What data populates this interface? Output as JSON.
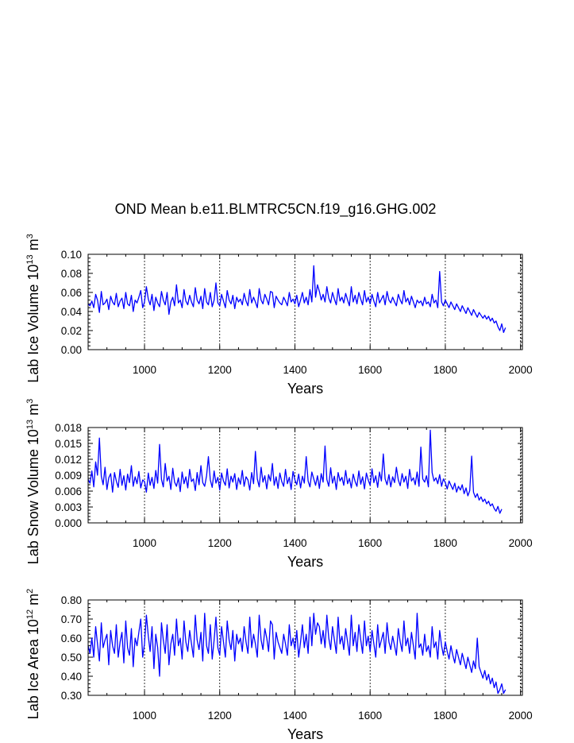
{
  "title": "OND Mean b.e11.BLMTRC5CN.f19_g16.GHG.002",
  "colors": {
    "series": "#0000ff",
    "axis": "#000000",
    "refline": "#000000"
  },
  "chart_data": [
    {
      "type": "line",
      "id": "ice_volume",
      "xlabel": "Years",
      "ylabel_main": "Lab Ice Volume 10",
      "ylabel_exp": "13",
      "ylabel_unit": "m",
      "ylabel_unit_exp": "3",
      "xlim": [
        850,
        2005
      ],
      "ylim": [
        0.0,
        0.1
      ],
      "xticks": [
        1000,
        1200,
        1400,
        1600,
        1800,
        2000
      ],
      "xtick_labels": [
        "1000",
        "1200",
        "1400",
        "1600",
        "1800",
        "2000"
      ],
      "yticks": [
        0.0,
        0.02,
        0.04,
        0.06,
        0.08,
        0.1
      ],
      "ytick_labels": [
        "0.00",
        "0.02",
        "0.04",
        "0.06",
        "0.08",
        "0.10"
      ],
      "ref_lines_x": [
        1000,
        1200,
        1400,
        1600,
        1800,
        2000
      ],
      "series": {
        "name": "Lab Ice Volume",
        "x_start": 850,
        "x_end": 2005,
        "x_step": 5,
        "values": [
          0.048,
          0.046,
          0.051,
          0.044,
          0.058,
          0.052,
          0.039,
          0.061,
          0.047,
          0.049,
          0.053,
          0.042,
          0.056,
          0.05,
          0.047,
          0.059,
          0.045,
          0.051,
          0.054,
          0.043,
          0.06,
          0.048,
          0.046,
          0.057,
          0.04,
          0.052,
          0.049,
          0.055,
          0.062,
          0.044,
          0.05,
          0.066,
          0.053,
          0.047,
          0.058,
          0.041,
          0.055,
          0.049,
          0.045,
          0.061,
          0.052,
          0.047,
          0.06,
          0.037,
          0.05,
          0.055,
          0.046,
          0.068,
          0.049,
          0.052,
          0.044,
          0.063,
          0.051,
          0.047,
          0.057,
          0.05,
          0.045,
          0.065,
          0.052,
          0.048,
          0.056,
          0.043,
          0.064,
          0.05,
          0.047,
          0.06,
          0.045,
          0.052,
          0.07,
          0.049,
          0.046,
          0.058,
          0.051,
          0.044,
          0.062,
          0.052,
          0.048,
          0.057,
          0.043,
          0.055,
          0.05,
          0.053,
          0.047,
          0.059,
          0.051,
          0.046,
          0.063,
          0.049,
          0.055,
          0.05,
          0.044,
          0.064,
          0.052,
          0.048,
          0.058,
          0.053,
          0.047,
          0.061,
          0.06,
          0.044,
          0.056,
          0.052,
          0.049,
          0.047,
          0.055,
          0.051,
          0.046,
          0.06,
          0.05,
          0.053,
          0.048,
          0.057,
          0.045,
          0.052,
          0.06,
          0.049,
          0.055,
          0.047,
          0.063,
          0.05,
          0.088,
          0.055,
          0.068,
          0.061,
          0.052,
          0.058,
          0.05,
          0.066,
          0.054,
          0.049,
          0.06,
          0.053,
          0.047,
          0.064,
          0.051,
          0.055,
          0.049,
          0.059,
          0.052,
          0.046,
          0.066,
          0.05,
          0.057,
          0.048,
          0.06,
          0.053,
          0.047,
          0.062,
          0.05,
          0.055,
          0.048,
          0.058,
          0.051,
          0.045,
          0.06,
          0.049,
          0.053,
          0.057,
          0.047,
          0.061,
          0.052,
          0.049,
          0.055,
          0.05,
          0.046,
          0.058,
          0.052,
          0.048,
          0.062,
          0.05,
          0.054,
          0.047,
          0.056,
          0.05,
          0.044,
          0.052,
          0.049,
          0.051,
          0.046,
          0.055,
          0.048,
          0.05,
          0.045,
          0.058,
          0.049,
          0.052,
          0.044,
          0.082,
          0.05,
          0.046,
          0.052,
          0.048,
          0.044,
          0.05,
          0.046,
          0.042,
          0.048,
          0.044,
          0.04,
          0.046,
          0.042,
          0.038,
          0.044,
          0.04,
          0.036,
          0.042,
          0.038,
          0.034,
          0.039,
          0.036,
          0.033,
          0.036,
          0.032,
          0.035,
          0.03,
          0.033,
          0.028,
          0.03,
          0.024,
          0.02,
          0.027,
          0.018,
          0.023
        ]
      }
    },
    {
      "type": "line",
      "id": "snow_volume",
      "xlabel": "Years",
      "ylabel_main": "Lab Snow Volume 10",
      "ylabel_exp": "13",
      "ylabel_unit": "m",
      "ylabel_unit_exp": "3",
      "xlim": [
        850,
        2005
      ],
      "ylim": [
        0.0,
        0.018
      ],
      "xticks": [
        1000,
        1200,
        1400,
        1600,
        1800,
        2000
      ],
      "xtick_labels": [
        "1000",
        "1200",
        "1400",
        "1600",
        "1800",
        "2000"
      ],
      "yticks": [
        0.0,
        0.003,
        0.006,
        0.009,
        0.012,
        0.015,
        0.018
      ],
      "ytick_labels": [
        "0.000",
        "0.003",
        "0.006",
        "0.009",
        "0.012",
        "0.015",
        "0.018"
      ],
      "ref_lines_x": [
        1000,
        1200,
        1400,
        1600,
        1800,
        2000
      ],
      "series": {
        "name": "Lab Snow Volume",
        "x_start": 850,
        "x_end": 2005,
        "x_step": 5,
        "values": [
          0.0082,
          0.0075,
          0.0098,
          0.0068,
          0.0115,
          0.009,
          0.016,
          0.0088,
          0.0072,
          0.0105,
          0.0063,
          0.0085,
          0.0093,
          0.0058,
          0.0095,
          0.0079,
          0.0067,
          0.0101,
          0.0071,
          0.0089,
          0.0062,
          0.0092,
          0.0076,
          0.0108,
          0.0069,
          0.0087,
          0.0074,
          0.0097,
          0.0066,
          0.0081,
          0.0078,
          0.0058,
          0.0094,
          0.0071,
          0.0086,
          0.0065,
          0.0099,
          0.0075,
          0.0148,
          0.0082,
          0.0068,
          0.0112,
          0.0079,
          0.0088,
          0.0063,
          0.0103,
          0.0077,
          0.0069,
          0.0085,
          0.0059,
          0.0096,
          0.0074,
          0.0087,
          0.0066,
          0.0101,
          0.0078,
          0.0083,
          0.0061,
          0.0095,
          0.0072,
          0.0108,
          0.0076,
          0.0069,
          0.0089,
          0.0125,
          0.0081,
          0.0067,
          0.0098,
          0.0075,
          0.0086,
          0.0062,
          0.0094,
          0.0079,
          0.0071,
          0.0102,
          0.0066,
          0.0088,
          0.0077,
          0.0093,
          0.0063,
          0.0085,
          0.0073,
          0.0099,
          0.0069,
          0.0087,
          0.0081,
          0.0062,
          0.0095,
          0.0074,
          0.0135,
          0.0083,
          0.0068,
          0.0105,
          0.0077,
          0.0089,
          0.0064,
          0.0091,
          0.0079,
          0.0112,
          0.0071,
          0.0087,
          0.0065,
          0.0094,
          0.0078,
          0.0069,
          0.0101,
          0.0074,
          0.0086,
          0.0063,
          0.0097,
          0.0081,
          0.0072,
          0.0092,
          0.0066,
          0.0088,
          0.0075,
          0.0125,
          0.0079,
          0.0068,
          0.0096,
          0.0083,
          0.0071,
          0.0089,
          0.0065,
          0.0093,
          0.0077,
          0.0145,
          0.0082,
          0.0069,
          0.0104,
          0.0075,
          0.0088,
          0.0063,
          0.0095,
          0.0079,
          0.0086,
          0.0071,
          0.0099,
          0.0074,
          0.0084,
          0.0066,
          0.0092,
          0.0078,
          0.0069,
          0.0098,
          0.0073,
          0.0087,
          0.0064,
          0.0094,
          0.0081,
          0.0071,
          0.0102,
          0.0076,
          0.0089,
          0.0067,
          0.0096,
          0.0079,
          0.013,
          0.0083,
          0.0072,
          0.0091,
          0.0068,
          0.0087,
          0.0076,
          0.0105,
          0.0081,
          0.007,
          0.0093,
          0.0077,
          0.0088,
          0.0065,
          0.0101,
          0.0079,
          0.0085,
          0.0072,
          0.0096,
          0.0069,
          0.0143,
          0.0083,
          0.0077,
          0.0089,
          0.0068,
          0.0175,
          0.0095,
          0.0079,
          0.0085,
          0.0074,
          0.0091,
          0.0069,
          0.0083,
          0.0076,
          0.0064,
          0.0079,
          0.0071,
          0.0063,
          0.0075,
          0.0058,
          0.0069,
          0.0062,
          0.0072,
          0.0055,
          0.0066,
          0.0051,
          0.0061,
          0.0126,
          0.0058,
          0.0048,
          0.0055,
          0.0043,
          0.0049,
          0.004,
          0.0045,
          0.0036,
          0.0041,
          0.0032,
          0.0036,
          0.0027,
          0.0022,
          0.0031,
          0.0018,
          0.0026
        ]
      }
    },
    {
      "type": "line",
      "id": "ice_area",
      "xlabel": "Years",
      "ylabel_main": "Lab Ice Area 10",
      "ylabel_exp": "12",
      "ylabel_unit": "m",
      "ylabel_unit_exp": "2",
      "xlim": [
        850,
        2005
      ],
      "ylim": [
        0.3,
        0.8
      ],
      "xticks": [
        1000,
        1200,
        1400,
        1600,
        1800,
        2000
      ],
      "xtick_labels": [
        "1000",
        "1200",
        "1400",
        "1600",
        "1800",
        "2000"
      ],
      "yticks": [
        0.3,
        0.4,
        0.5,
        0.6,
        0.7,
        0.8
      ],
      "ytick_labels": [
        "0.30",
        "0.40",
        "0.50",
        "0.60",
        "0.70",
        "0.80"
      ],
      "ref_lines_x": [
        1000,
        1200,
        1400,
        1600,
        1800,
        2000
      ],
      "series": {
        "name": "Lab Ice Area",
        "x_start": 850,
        "x_end": 2005,
        "x_step": 5,
        "values": [
          0.56,
          0.52,
          0.6,
          0.5,
          0.66,
          0.57,
          0.48,
          0.68,
          0.55,
          0.59,
          0.62,
          0.46,
          0.64,
          0.56,
          0.52,
          0.67,
          0.5,
          0.58,
          0.63,
          0.47,
          0.69,
          0.55,
          0.51,
          0.65,
          0.45,
          0.6,
          0.56,
          0.63,
          0.7,
          0.5,
          0.57,
          0.72,
          0.61,
          0.53,
          0.66,
          0.44,
          0.62,
          0.55,
          0.4,
          0.68,
          0.59,
          0.52,
          0.67,
          0.46,
          0.57,
          0.62,
          0.51,
          0.7,
          0.56,
          0.6,
          0.49,
          0.69,
          0.58,
          0.53,
          0.64,
          0.57,
          0.5,
          0.72,
          0.59,
          0.54,
          0.63,
          0.48,
          0.73,
          0.56,
          0.52,
          0.67,
          0.49,
          0.59,
          0.71,
          0.55,
          0.51,
          0.66,
          0.58,
          0.5,
          0.69,
          0.59,
          0.54,
          0.64,
          0.48,
          0.62,
          0.57,
          0.6,
          0.53,
          0.66,
          0.58,
          0.52,
          0.71,
          0.55,
          0.62,
          0.57,
          0.5,
          0.72,
          0.59,
          0.54,
          0.65,
          0.6,
          0.53,
          0.69,
          0.67,
          0.49,
          0.63,
          0.58,
          0.55,
          0.52,
          0.62,
          0.57,
          0.51,
          0.67,
          0.56,
          0.6,
          0.54,
          0.64,
          0.5,
          0.58,
          0.67,
          0.55,
          0.62,
          0.52,
          0.71,
          0.56,
          0.73,
          0.62,
          0.68,
          0.66,
          0.57,
          0.64,
          0.55,
          0.72,
          0.6,
          0.54,
          0.66,
          0.59,
          0.52,
          0.71,
          0.57,
          0.61,
          0.54,
          0.65,
          0.58,
          0.51,
          0.72,
          0.56,
          0.63,
          0.53,
          0.67,
          0.59,
          0.52,
          0.69,
          0.56,
          0.61,
          0.53,
          0.64,
          0.57,
          0.5,
          0.67,
          0.55,
          0.59,
          0.63,
          0.52,
          0.68,
          0.58,
          0.54,
          0.61,
          0.56,
          0.51,
          0.65,
          0.58,
          0.53,
          0.69,
          0.56,
          0.6,
          0.52,
          0.63,
          0.56,
          0.49,
          0.73,
          0.55,
          0.57,
          0.51,
          0.62,
          0.53,
          0.56,
          0.5,
          0.66,
          0.55,
          0.58,
          0.49,
          0.64,
          0.56,
          0.51,
          0.58,
          0.53,
          0.49,
          0.56,
          0.51,
          0.47,
          0.54,
          0.5,
          0.46,
          0.52,
          0.48,
          0.44,
          0.5,
          0.46,
          0.42,
          0.48,
          0.44,
          0.6,
          0.45,
          0.42,
          0.39,
          0.43,
          0.38,
          0.41,
          0.36,
          0.39,
          0.34,
          0.37,
          0.31,
          0.33,
          0.36,
          0.31,
          0.33
        ]
      }
    }
  ]
}
